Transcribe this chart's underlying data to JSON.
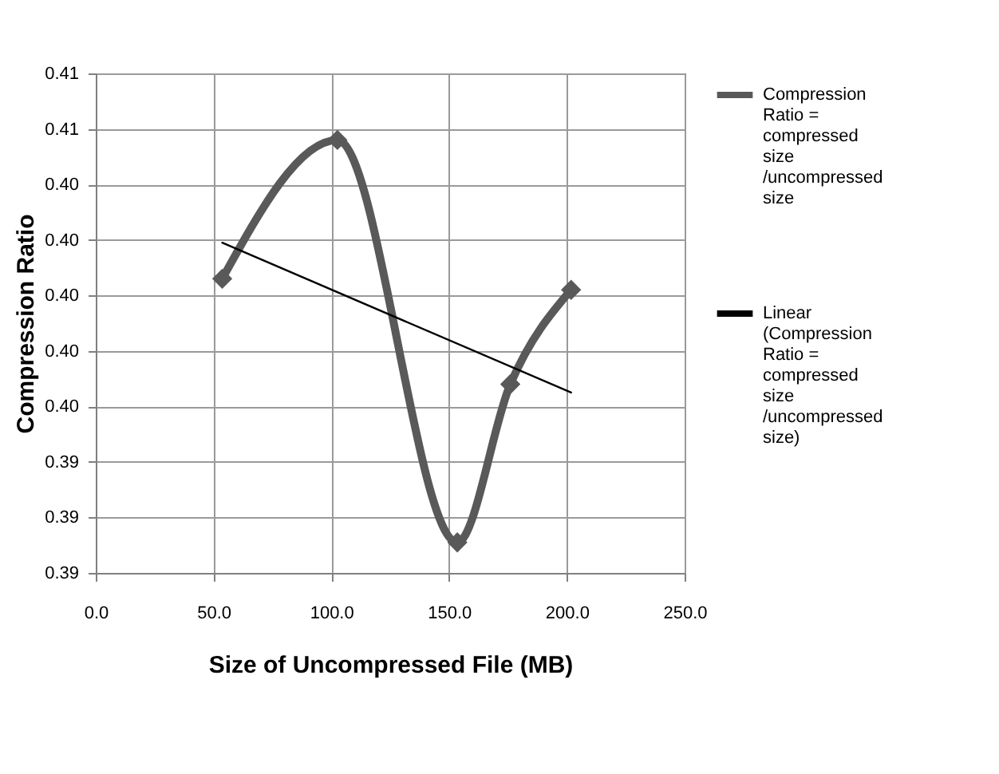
{
  "chart_data": {
    "type": "line",
    "xlabel": "Size of Uncompressed File (MB)",
    "ylabel": "Compression Ratio",
    "series": [
      {
        "name": "Compression Ratio = compressed size /uncompressed size",
        "color": "#595959",
        "x": [
          53.7,
          102.6,
          153.5,
          176,
          201.8
        ],
        "values": [
          0.4006,
          0.4056,
          0.3911,
          0.3968,
          0.4002
        ],
        "marker": "diamond"
      },
      {
        "name": "Linear (Compression Ratio = compressed size /uncompressed size)",
        "color": "#000000",
        "x": [
          53.7,
          201.8
        ],
        "values": [
          0.4019,
          0.3965
        ],
        "marker": "none"
      }
    ],
    "xlim": [
      0,
      250
    ],
    "xticks": [
      {
        "value": 0,
        "label": "0.0"
      },
      {
        "value": 50,
        "label": "50.0"
      },
      {
        "value": 100,
        "label": "100.0"
      },
      {
        "value": 150,
        "label": "150.0"
      },
      {
        "value": 200,
        "label": "200.0"
      },
      {
        "value": 250,
        "label": "250.0"
      }
    ],
    "ylim": [
      0.39,
      0.408
    ],
    "yticks": [
      {
        "value": 0.39,
        "label": "0.39"
      },
      {
        "value": 0.392,
        "label": "0.39"
      },
      {
        "value": 0.394,
        "label": "0.39"
      },
      {
        "value": 0.396,
        "label": "0.40"
      },
      {
        "value": 0.398,
        "label": "0.40"
      },
      {
        "value": 0.4,
        "label": "0.40"
      },
      {
        "value": 0.402,
        "label": "0.40"
      },
      {
        "value": 0.404,
        "label": "0.40"
      },
      {
        "value": 0.406,
        "label": "0.41"
      },
      {
        "value": 0.408,
        "label": "0.41"
      }
    ],
    "grid": true,
    "legend": "right"
  }
}
